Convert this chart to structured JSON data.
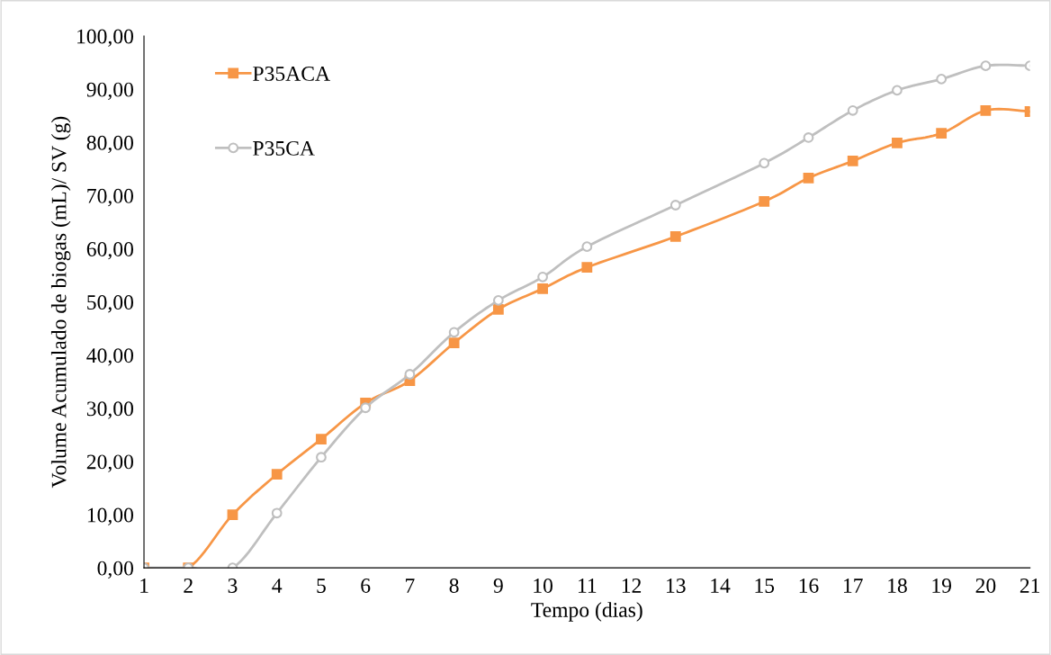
{
  "chart_data": {
    "type": "line",
    "xlabel": "Tempo (dias)",
    "ylabel": "Volume Acumulado de biogas (mL)/ SV (g)",
    "categories": [
      "1",
      "2",
      "3",
      "4",
      "5",
      "6",
      "7",
      "8",
      "9",
      "10",
      "11",
      "12",
      "13",
      "14",
      "15",
      "16",
      "17",
      "18",
      "19",
      "20",
      "21"
    ],
    "series": [
      {
        "name": "P35ACA",
        "color": "#f79646",
        "marker": "square",
        "values": [
          0.0,
          0.0,
          10.0,
          17.6,
          24.2,
          31.0,
          35.2,
          42.3,
          48.6,
          52.5,
          56.5,
          null,
          62.3,
          null,
          68.9,
          73.3,
          76.5,
          79.9,
          81.7,
          86.0,
          85.8
        ]
      },
      {
        "name": "P35CA",
        "color": "#bfbfbf",
        "marker": "circle",
        "values": [
          0.0,
          0.0,
          0.0,
          10.3,
          20.8,
          30.1,
          36.4,
          44.3,
          50.3,
          54.7,
          60.4,
          null,
          68.2,
          null,
          76.1,
          80.9,
          86.0,
          89.8,
          91.9,
          94.4,
          94.4
        ]
      }
    ],
    "ylim": [
      0,
      100
    ],
    "yticks": [
      {
        "value": 0,
        "label": "0,00"
      },
      {
        "value": 10,
        "label": "10,00"
      },
      {
        "value": 20,
        "label": "20,00"
      },
      {
        "value": 30,
        "label": "30,00"
      },
      {
        "value": 40,
        "label": "40,00"
      },
      {
        "value": 50,
        "label": "50,00"
      },
      {
        "value": 60,
        "label": "60,00"
      },
      {
        "value": 70,
        "label": "70,00"
      },
      {
        "value": 80,
        "label": "80,00"
      },
      {
        "value": 90,
        "label": "90,00"
      },
      {
        "value": 100,
        "label": "100,00"
      }
    ],
    "grid": false,
    "legend": "top left",
    "line_style": "solid"
  }
}
